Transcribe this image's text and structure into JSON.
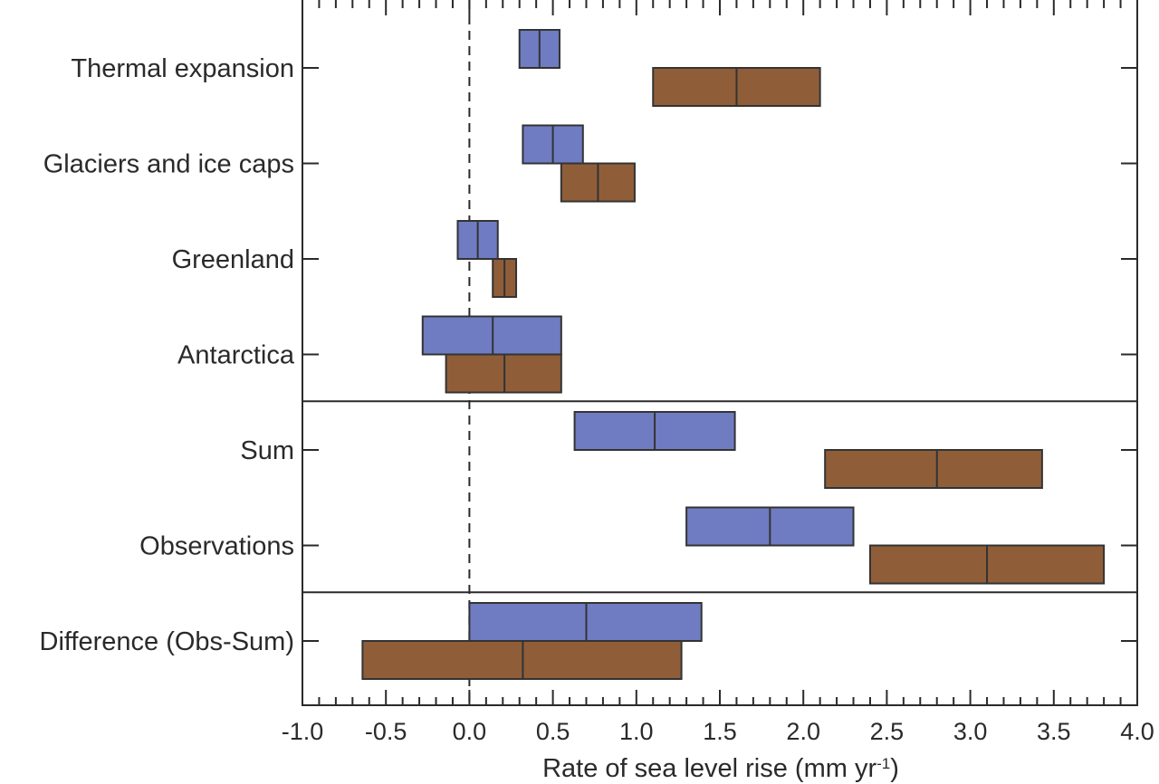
{
  "chart_data": {
    "type": "box_range",
    "xlabel_main": "Rate of sea level rise (mm yr",
    "xlabel_sup": "-1",
    "xlabel_tail": ")",
    "xlim": [
      -1.0,
      4.0
    ],
    "xticks": [
      -1.0,
      -0.5,
      0.0,
      0.5,
      1.0,
      1.5,
      2.0,
      2.5,
      3.0,
      3.5,
      4.0
    ],
    "xtick_labels": [
      "-1.0",
      "-0.5",
      "0.0",
      "0.5",
      "1.0",
      "1.5",
      "2.0",
      "2.5",
      "3.0",
      "3.5",
      "4.0"
    ],
    "reference_line_x": 0.0,
    "grid": false,
    "legend": "none",
    "categories": [
      "Thermal expansion",
      "Glaciers and ice caps",
      "Greenland",
      "Antarctica",
      "Sum",
      "Observations",
      "Difference (Obs-Sum)"
    ],
    "group_separators_after": [
      3,
      5
    ],
    "series": [
      {
        "color": "#6f7cc2",
        "position": "upper",
        "ranges": [
          {
            "low": 0.3,
            "mid": 0.42,
            "high": 0.54
          },
          {
            "low": 0.32,
            "mid": 0.5,
            "high": 0.68
          },
          {
            "low": -0.07,
            "mid": 0.05,
            "high": 0.17
          },
          {
            "low": -0.28,
            "mid": 0.14,
            "high": 0.55
          },
          {
            "low": 0.63,
            "mid": 1.11,
            "high": 1.59
          },
          {
            "low": 1.3,
            "mid": 1.8,
            "high": 2.3
          },
          {
            "low": 0.0,
            "mid": 0.7,
            "high": 1.39
          }
        ]
      },
      {
        "color": "#8f5e39",
        "position": "lower",
        "ranges": [
          {
            "low": 1.1,
            "mid": 1.6,
            "high": 2.1
          },
          {
            "low": 0.55,
            "mid": 0.77,
            "high": 0.99
          },
          {
            "low": 0.14,
            "mid": 0.21,
            "high": 0.28
          },
          {
            "low": -0.14,
            "mid": 0.21,
            "high": 0.55
          },
          {
            "low": 2.13,
            "mid": 2.8,
            "high": 3.43
          },
          {
            "low": 2.4,
            "mid": 3.1,
            "high": 3.8
          },
          {
            "low": -0.64,
            "mid": 0.32,
            "high": 1.27
          }
        ]
      }
    ]
  }
}
